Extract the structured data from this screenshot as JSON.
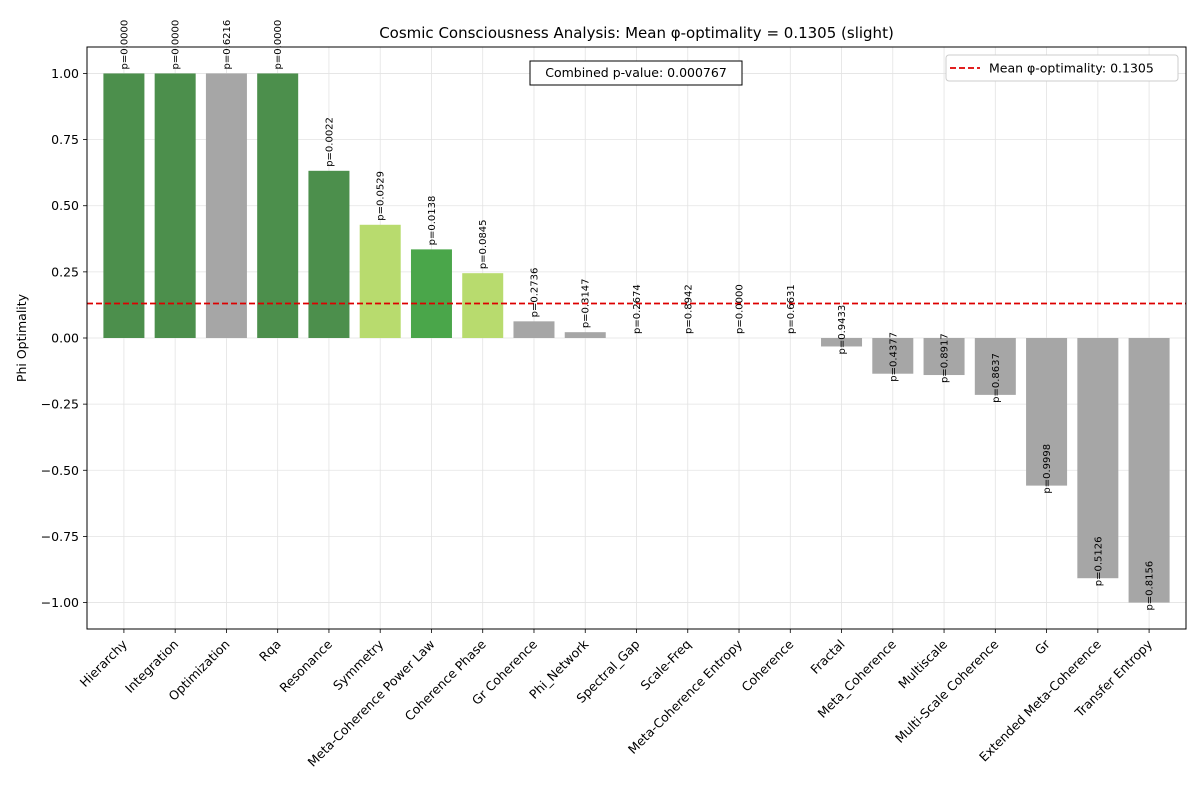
{
  "chart_data": {
    "type": "bar",
    "title": "Cosmic Consciousness Analysis: Mean φ-optimality = 0.1305 (slight)",
    "xlabel": "",
    "ylabel": "Phi Optimality",
    "ylim": [
      -1.1,
      1.1
    ],
    "yticks": [
      -1.0,
      -0.75,
      -0.5,
      -0.25,
      0.0,
      0.25,
      0.5,
      0.75,
      1.0
    ],
    "ytick_labels": [
      "−1.00",
      "−0.75",
      "−0.50",
      "−0.25",
      "0.00",
      "0.25",
      "0.50",
      "0.75",
      "1.00"
    ],
    "grid": true,
    "categories": [
      "Hierarchy",
      "Integration",
      "Optimization",
      "Rqa",
      "Resonance",
      "Symmetry",
      "Meta-Coherence Power Law",
      "Coherence Phase",
      "Gr Coherence",
      "Phi_Network",
      "Spectral_Gap",
      "Scale-Freq",
      "Meta-Coherence Entropy",
      "Coherence",
      "Fractal",
      "Meta_Coherence",
      "Multiscale",
      "Multi-Scale Coherence",
      "Gr",
      "Extended Meta-Coherence",
      "Transfer Entropy"
    ],
    "values": [
      1.0,
      1.0,
      1.0,
      1.0,
      0.632,
      0.428,
      0.335,
      0.245,
      0.063,
      0.022,
      0.0,
      0.0,
      0.0,
      0.0,
      -0.032,
      -0.135,
      -0.14,
      -0.215,
      -0.558,
      -0.908,
      -1.0
    ],
    "p_value_labels": [
      "p=0.0000",
      "p=0.0000",
      "p=0.6216",
      "p=0.0000",
      "p=0.0022",
      "p=0.0529",
      "p=0.0138",
      "p=0.0845",
      "p=0.2736",
      "p=0.3147",
      "p=0.2674",
      "p=0.8942",
      "p=0.0000",
      "p=0.6631",
      "p=0.9433",
      "p=0.4377",
      "p=0.8917",
      "p=0.8637",
      "p=0.9998",
      "p=0.5126",
      "p=0.8156"
    ],
    "bar_colors": [
      "#4c8f4c",
      "#4c8f4c",
      "#a6a6a6",
      "#4c8f4c",
      "#4c8f4c",
      "#b8db6e",
      "#4aa64a",
      "#b8db6e",
      "#a6a6a6",
      "#a6a6a6",
      "#a6a6a6",
      "#a6a6a6",
      "#a6a6a6",
      "#a6a6a6",
      "#a6a6a6",
      "#a6a6a6",
      "#a6a6a6",
      "#a6a6a6",
      "#a6a6a6",
      "#a6a6a6",
      "#a6a6a6"
    ],
    "reference_line": {
      "value": 0.1305,
      "color": "#dd0000",
      "style": "dashed",
      "legend_label": "Mean φ-optimality: 0.1305"
    },
    "legend_position": "top-right",
    "annotation": "Combined p-value: 0.000767"
  }
}
